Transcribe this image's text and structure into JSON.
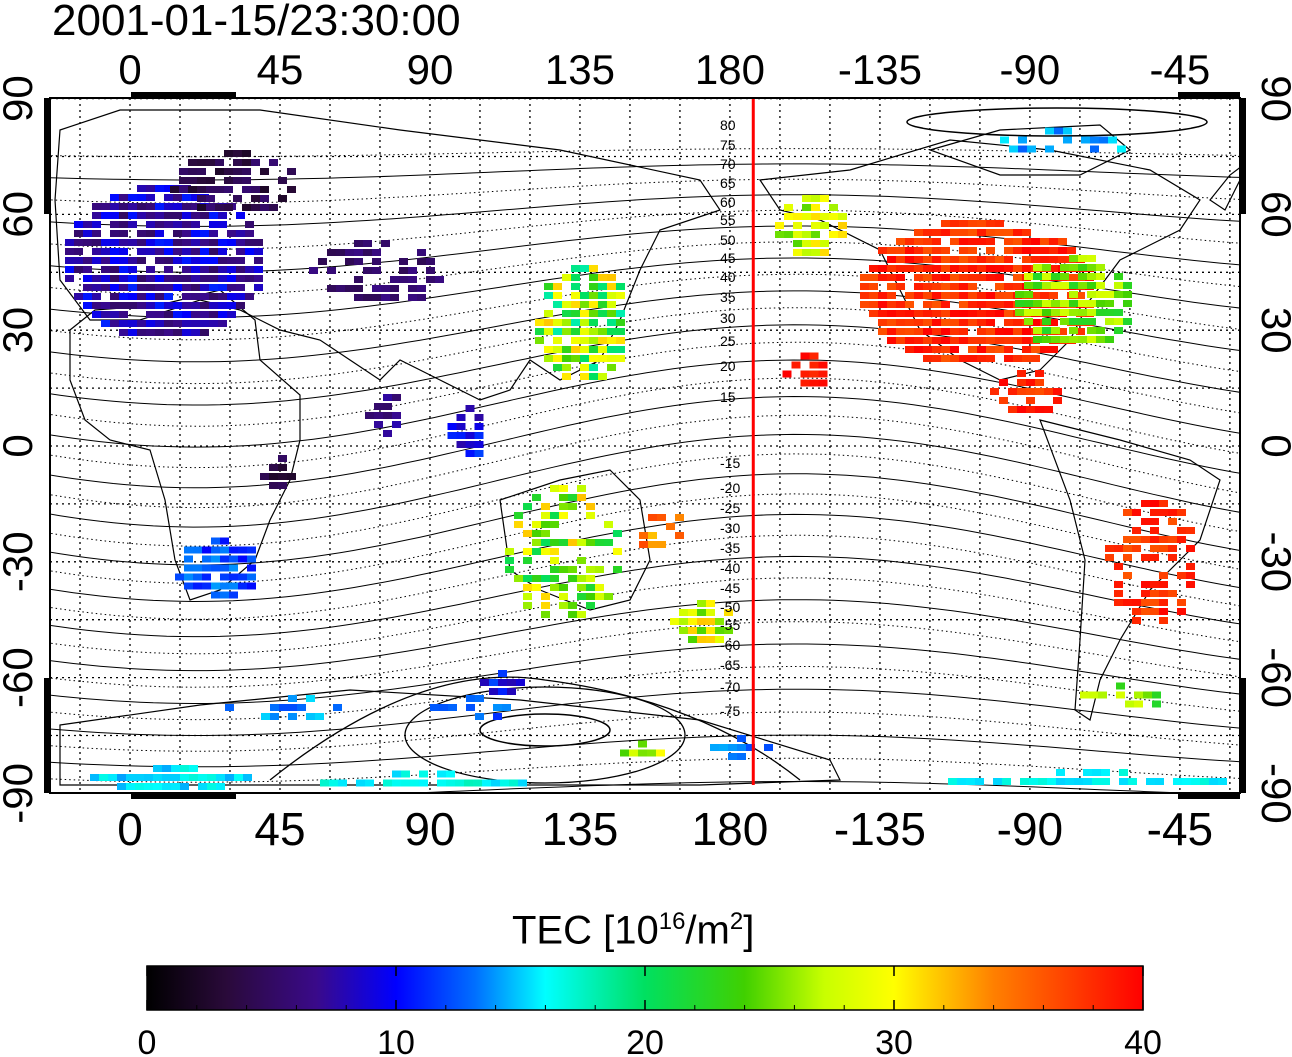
{
  "title": "2001-01-15/23:30:00",
  "map": {
    "lon_labels": [
      "0",
      "45",
      "90",
      "135",
      "180",
      "-135",
      "-90",
      "-45"
    ],
    "lon_values": [
      0,
      45,
      90,
      135,
      180,
      225,
      270,
      315
    ],
    "lat_labels": [
      "90",
      "60",
      "30",
      "0",
      "-30",
      "-60",
      "-90"
    ],
    "lat_values": [
      90,
      60,
      30,
      0,
      -30,
      -60,
      -90
    ],
    "lon_range": [
      -25,
      333
    ],
    "lat_range": [
      -95,
      95
    ],
    "grid": "dotted, every 15 degrees",
    "magnetic_lat_labels": [
      "80",
      "75",
      "70",
      "65",
      "60",
      "55",
      "50",
      "45",
      "40",
      "35",
      "30",
      "25",
      "20",
      "15",
      "-15",
      "-20",
      "-25",
      "-30",
      "-35",
      "-40",
      "-45",
      "-50",
      "-55",
      "-60",
      "-65",
      "-70",
      "-75"
    ],
    "terminator_marker_lon": 187,
    "marker_color": "#ff0000"
  },
  "colorbar": {
    "title_main": "TEC  [10",
    "title_exp": "16",
    "title_unit": "/m",
    "title_exp2": "2",
    "title_close": "]",
    "ticks": [
      "0",
      "10",
      "20",
      "30",
      "40"
    ],
    "min": 0,
    "max": 40
  }
}
